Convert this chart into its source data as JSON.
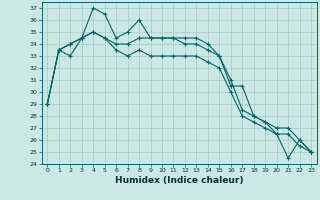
{
  "xlabel": "Humidex (Indice chaleur)",
  "background_color": "#cce8e4",
  "grid_color": "#aacfcb",
  "line_color": "#006666",
  "ylim": [
    24,
    37.5
  ],
  "xlim": [
    -0.5,
    23.5
  ],
  "yticks": [
    24,
    25,
    26,
    27,
    28,
    29,
    30,
    31,
    32,
    33,
    34,
    35,
    36,
    37
  ],
  "xticks": [
    0,
    1,
    2,
    3,
    4,
    5,
    6,
    7,
    8,
    9,
    10,
    11,
    12,
    13,
    14,
    15,
    16,
    17,
    18,
    19,
    20,
    21,
    22,
    23
  ],
  "series": [
    [
      29.0,
      33.5,
      33.0,
      34.5,
      37.0,
      36.5,
      34.5,
      35.0,
      36.0,
      34.5,
      34.5,
      34.5,
      34.5,
      34.5,
      34.0,
      33.0,
      30.5,
      30.5,
      28.0,
      27.5,
      26.5,
      26.5,
      25.5,
      25.0
    ],
    [
      29.0,
      33.5,
      34.0,
      34.5,
      35.0,
      34.5,
      34.0,
      34.0,
      34.5,
      34.5,
      34.5,
      34.5,
      34.0,
      34.0,
      33.5,
      33.0,
      31.0,
      28.5,
      28.0,
      27.5,
      27.0,
      27.0,
      26.0,
      25.0
    ],
    [
      29.0,
      33.5,
      34.0,
      34.5,
      35.0,
      34.5,
      33.5,
      33.0,
      33.5,
      33.0,
      33.0,
      33.0,
      33.0,
      33.0,
      32.5,
      32.0,
      30.0,
      28.0,
      27.5,
      27.0,
      26.5,
      24.5,
      26.0,
      25.0
    ]
  ]
}
